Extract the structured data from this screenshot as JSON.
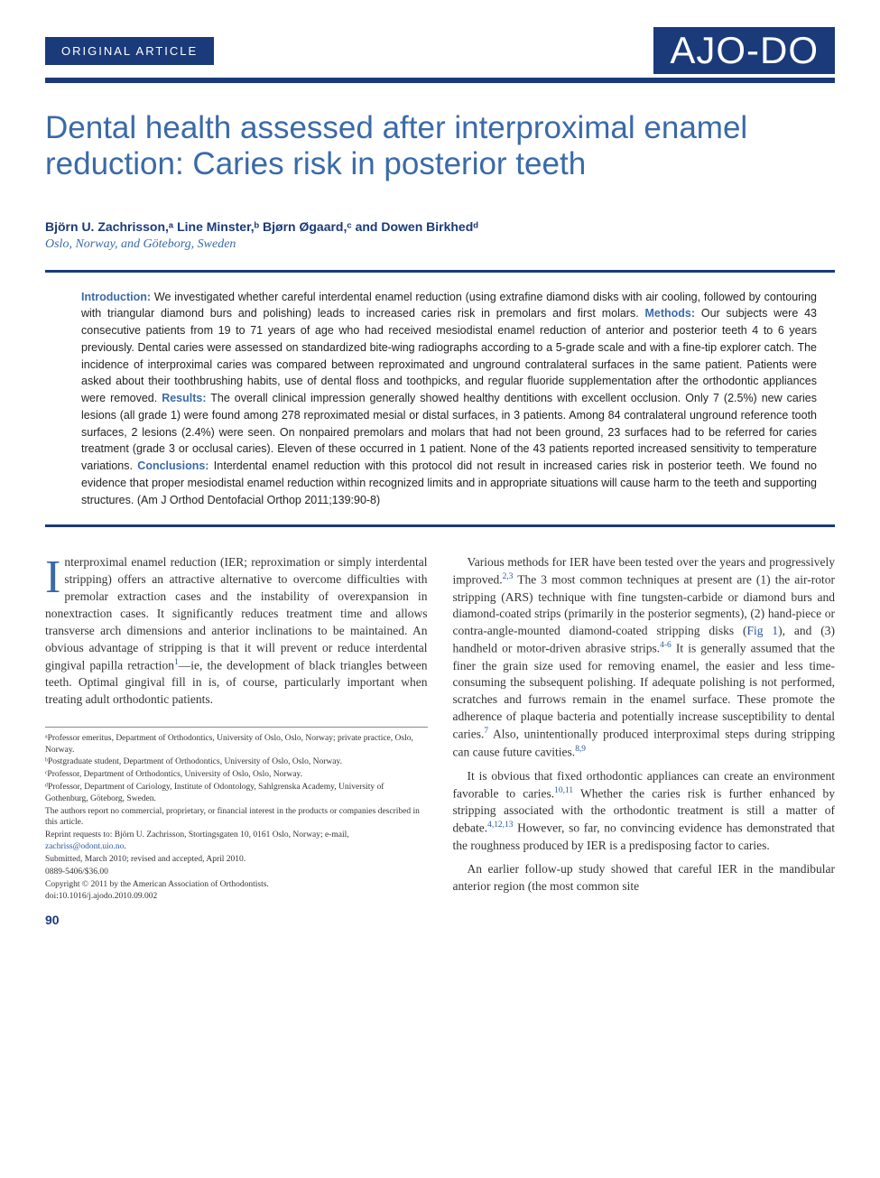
{
  "header": {
    "article_type": "ORIGINAL ARTICLE",
    "journal_logo": "AJO-DO"
  },
  "title": "Dental health assessed after interproximal enamel reduction: Caries risk in posterior teeth",
  "authors_html": "Björn U. Zachrisson,ᵃ Line Minster,ᵇ Bjørn Øgaard,ᶜ and Dowen Birkhedᵈ",
  "affiliations_line": "Oslo, Norway, and Göteborg, Sweden",
  "abstract": {
    "intro_label": "Introduction:",
    "intro": " We investigated whether careful interdental enamel reduction (using extrafine diamond disks with air cooling, followed by contouring with triangular diamond burs and polishing) leads to increased caries risk in premolars and first molars. ",
    "methods_label": "Methods:",
    "methods": " Our subjects were 43 consecutive patients from 19 to 71 years of age who had received mesiodistal enamel reduction of anterior and posterior teeth 4 to 6 years previously. Dental caries were assessed on standardized bite-wing radiographs according to a 5-grade scale and with a fine-tip explorer catch. The incidence of interproximal caries was compared between reproximated and unground contralateral surfaces in the same patient. Patients were asked about their toothbrushing habits, use of dental floss and toothpicks, and regular fluoride supplementation after the orthodontic appliances were removed. ",
    "results_label": "Results:",
    "results": " The overall clinical impression generally showed healthy dentitions with excellent occlusion. Only 7 (2.5%) new caries lesions (all grade 1) were found among 278 reproximated mesial or distal surfaces, in 3 patients. Among 84 contralateral unground reference tooth surfaces, 2 lesions (2.4%) were seen. On nonpaired premolars and molars that had not been ground, 23 surfaces had to be referred for caries treatment (grade 3 or occlusal caries). Eleven of these occurred in 1 patient. None of the 43 patients reported increased sensitivity to temperature variations. ",
    "conclusions_label": "Conclusions:",
    "conclusions": " Interdental enamel reduction with this protocol did not result in increased caries risk in posterior teeth. We found no evidence that proper mesiodistal enamel reduction within recognized limits and in appropriate situations will cause harm to the teeth and supporting structures. (Am J Orthod Dentofacial Orthop 2011;139:90-8)"
  },
  "body": {
    "col1": {
      "p1_rest": "nterproximal enamel reduction (IER; reproximation or simply interdental stripping) offers an attractive alternative to overcome difficulties with premolar extraction cases and the instability of overexpansion in nonextraction cases. It significantly reduces treatment time and allows transverse arch dimensions and anterior inclinations to be maintained. An obvious advantage of stripping is that it will prevent or reduce interdental gingival papilla retraction",
      "p1_tail": "—ie, the development of black triangles between teeth. Optimal gingival fill in is, of course, particularly important when treating adult orthodontic patients."
    },
    "col2": {
      "p1a": "Various methods for IER have been tested over the years and progressively improved.",
      "p1b": " The 3 most common techniques at present are (1) the air-rotor stripping (ARS) technique with fine tungsten-carbide or diamond burs and diamond-coated strips (primarily in the posterior segments), (2) hand-piece or contra-angle-mounted diamond-coated stripping disks (",
      "p1c": "), and (3) handheld or motor-driven abrasive strips.",
      "p1d": " It is generally assumed that the finer the grain size used for removing enamel, the easier and less time-consuming the subsequent polishing. If adequate polishing is not performed, scratches and furrows remain in the enamel surface. These promote the adherence of plaque bacteria and potentially increase susceptibility to dental caries.",
      "p1e": " Also, unintentionally produced interproximal steps during stripping can cause future cavities.",
      "p2a": "It is obvious that fixed orthodontic appliances can create an environment favorable to caries.",
      "p2b": " Whether the caries risk is further enhanced by stripping associated with the orthodontic treatment is still a matter of debate.",
      "p2c": " However, so far, no convincing evidence has demonstrated that the roughness produced by IER is a predisposing factor to caries.",
      "p3": "An earlier follow-up study showed that careful IER in the mandibular anterior region (the most common site"
    },
    "refs": {
      "r1": "1",
      "r23": "2,3",
      "fig1": "Fig 1",
      "r46": "4-6",
      "r7": "7",
      "r89": "8,9",
      "r1011": "10,11",
      "r41213": "4,12,13"
    }
  },
  "footnotes": {
    "a": "ᵃProfessor emeritus, Department of Orthodontics, University of Oslo, Oslo, Norway; private practice, Oslo, Norway.",
    "b": "ᵇPostgraduate student, Department of Orthodontics, University of Oslo, Oslo, Norway.",
    "c": "ᶜProfessor, Department of Orthodontics, University of Oslo, Oslo, Norway.",
    "d": "ᵈProfessor, Department of Cariology, Institute of Odontology, Sahlgrenska Academy, University of Gothenburg, Göteborg, Sweden.",
    "coi": "The authors report no commercial, proprietary, or financial interest in the products or companies described in this article.",
    "reprint_pre": "Reprint requests to: Björn U. Zachrisson, Stortingsgaten 10, 0161 Oslo, Norway; e-mail, ",
    "reprint_email": "zachriss@odont.uio.no",
    "reprint_post": ".",
    "submitted": "Submitted, March 2010; revised and accepted, April 2010.",
    "issn": "0889-5406/$36.00",
    "copyright": "Copyright © 2011 by the American Association of Orthodontists.",
    "doi": "doi:10.1016/j.ajodo.2010.09.002"
  },
  "page_number": "90",
  "colors": {
    "brand_blue": "#1a3a7a",
    "title_blue": "#3a6aa8",
    "link_blue": "#2a5aa0"
  }
}
